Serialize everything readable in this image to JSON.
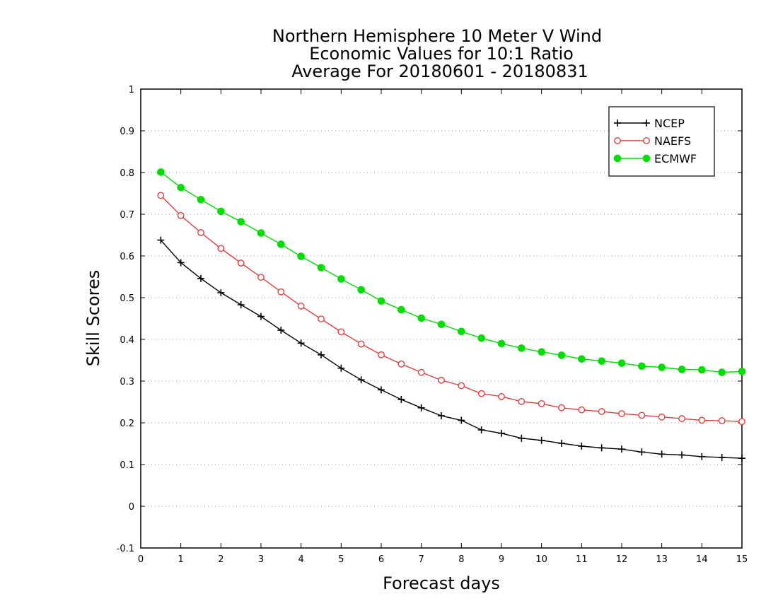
{
  "chart_data": {
    "type": "line",
    "title_lines": [
      "Northern Hemisphere 10 Meter V Wind",
      "Economic Values for 10:1 Ratio",
      "Average For 20180601 - 20180831"
    ],
    "xlabel": "Forecast days",
    "ylabel": "Skill Scores",
    "xlim": [
      0,
      15
    ],
    "ylim": [
      -0.1,
      1
    ],
    "x_ticks": [
      0,
      1,
      2,
      3,
      4,
      5,
      6,
      7,
      8,
      9,
      10,
      11,
      12,
      13,
      14,
      15
    ],
    "y_ticks": [
      -0.1,
      0,
      0.1,
      0.2,
      0.3,
      0.4,
      0.5,
      0.6,
      0.7,
      0.8,
      0.9,
      1
    ],
    "y_tick_labels": [
      "-0.1",
      "0",
      "0.1",
      "0.2",
      "0.3",
      "0.4",
      "0.5",
      "0.6",
      "0.7",
      "0.8",
      "0.9",
      "1"
    ],
    "grid": "horizontal dotted",
    "legend_position": "top-right",
    "x": [
      0.5,
      1,
      1.5,
      2,
      2.5,
      3,
      3.5,
      4,
      4.5,
      5,
      5.5,
      6,
      6.5,
      7,
      7.5,
      8,
      8.5,
      9,
      9.5,
      10,
      10.5,
      11,
      11.5,
      12,
      12.5,
      13,
      13.5,
      14,
      14.5,
      15
    ],
    "series": [
      {
        "name": "NCEP",
        "color": "#000000",
        "marker": "plus",
        "values": [
          0.638,
          0.584,
          0.546,
          0.512,
          0.483,
          0.455,
          0.422,
          0.391,
          0.363,
          0.331,
          0.303,
          0.279,
          0.256,
          0.236,
          0.217,
          0.206,
          0.183,
          0.175,
          0.163,
          0.158,
          0.151,
          0.144,
          0.14,
          0.137,
          0.13,
          0.125,
          0.123,
          0.119,
          0.117,
          0.115
        ]
      },
      {
        "name": "NAEFS",
        "color": "#e04040",
        "marker": "open-circle",
        "values": [
          0.745,
          0.697,
          0.656,
          0.618,
          0.583,
          0.549,
          0.514,
          0.48,
          0.449,
          0.418,
          0.389,
          0.363,
          0.341,
          0.321,
          0.302,
          0.289,
          0.27,
          0.263,
          0.251,
          0.246,
          0.236,
          0.231,
          0.227,
          0.222,
          0.218,
          0.214,
          0.21,
          0.206,
          0.205,
          0.203
        ]
      },
      {
        "name": "ECMWF",
        "color": "#00dd00",
        "marker": "filled-circle",
        "values": [
          0.801,
          0.764,
          0.735,
          0.707,
          0.682,
          0.655,
          0.628,
          0.599,
          0.572,
          0.545,
          0.519,
          0.492,
          0.471,
          0.451,
          0.436,
          0.419,
          0.403,
          0.39,
          0.379,
          0.37,
          0.362,
          0.353,
          0.348,
          0.343,
          0.336,
          0.333,
          0.328,
          0.327,
          0.321,
          0.323
        ]
      }
    ]
  }
}
